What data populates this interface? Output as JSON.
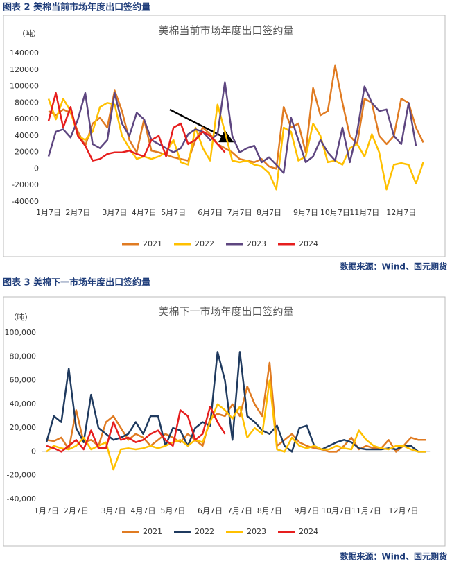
{
  "captions": [
    "图表 2  美棉当前市场年度出口签约量",
    "图表 3  美棉下一市场年度出口签约量"
  ],
  "sources": [
    "数据来源：Wind、国元期货",
    "数据来源：Wind、国元期货"
  ],
  "chart_data": [
    {
      "type": "line",
      "title": "美棉当前市场年度出口签约量",
      "ylabel": "（吨）",
      "categories": [
        "1月7日",
        null,
        null,
        null,
        "2月7日",
        null,
        null,
        null,
        null,
        "3月7日",
        null,
        null,
        null,
        "4月7日",
        null,
        null,
        null,
        "5月7日",
        null,
        null,
        null,
        null,
        "6月7日",
        null,
        null,
        null,
        "7月7日",
        null,
        null,
        null,
        "8月7日",
        null,
        null,
        null,
        null,
        "9月7日",
        null,
        null,
        null,
        "10月7日",
        null,
        null,
        null,
        "11月7日",
        null,
        null,
        null,
        null,
        "12月7日",
        null,
        null,
        null
      ],
      "ylim": [
        -40000,
        140000
      ],
      "yticks": [
        -40000,
        -20000,
        0,
        20000,
        40000,
        60000,
        80000,
        100000,
        120000,
        140000
      ],
      "legend": "bottom",
      "series": [
        {
          "name": "2021",
          "color": "#e07b22",
          "values": [
            70000,
            65000,
            72000,
            68000,
            45000,
            28000,
            55000,
            62000,
            50000,
            95000,
            70000,
            35000,
            20000,
            60000,
            22000,
            20000,
            17000,
            14000,
            12000,
            10000,
            35000,
            50000,
            42000,
            30000,
            25000,
            20000,
            12000,
            10000,
            8000,
            12000,
            3000,
            0,
            75000,
            50000,
            55000,
            20000,
            98000,
            65000,
            70000,
            125000,
            80000,
            40000,
            30000,
            85000,
            80000,
            40000,
            30000,
            40000,
            85000,
            80000,
            50000,
            32000
          ]
        },
        {
          "name": "2022",
          "color": "#ffc000",
          "values": [
            85000,
            60000,
            85000,
            70000,
            40000,
            35000,
            45000,
            75000,
            80000,
            78000,
            40000,
            25000,
            12000,
            15000,
            12000,
            15000,
            20000,
            35000,
            8000,
            5000,
            50000,
            25000,
            10000,
            78000,
            45000,
            10000,
            8000,
            10000,
            5000,
            3000,
            -5000,
            -25000,
            50000,
            45000,
            10000,
            15000,
            55000,
            40000,
            8000,
            10000,
            5000,
            25000,
            30000,
            15000,
            42000,
            20000,
            -25000,
            5000,
            7000,
            5000,
            -18000,
            8000
          ]
        },
        {
          "name": "2023",
          "color": "#5e4680",
          "values": [
            15000,
            45000,
            48000,
            38000,
            60000,
            92000,
            30000,
            25000,
            35000,
            92000,
            55000,
            40000,
            68000,
            60000,
            35000,
            30000,
            25000,
            20000,
            25000,
            42000,
            48000,
            45000,
            35000,
            42000,
            105000,
            40000,
            20000,
            25000,
            28000,
            8000,
            14000,
            5000,
            -5000,
            62000,
            35000,
            8000,
            15000,
            35000,
            20000,
            10000,
            50000,
            8000,
            45000,
            100000,
            80000,
            70000,
            72000,
            40000,
            30000,
            80000,
            28000,
            null
          ]
        },
        {
          "name": "2024",
          "color": "#e61e1e",
          "values": [
            58000,
            92000,
            50000,
            75000,
            40000,
            28000,
            10000,
            12000,
            18000,
            20000,
            20000,
            22000,
            18000,
            15000,
            35000,
            40000,
            15000,
            50000,
            55000,
            30000,
            35000,
            45000,
            40000,
            30000,
            20000,
            null,
            null,
            null,
            null,
            null,
            null,
            null,
            null,
            null,
            null,
            null,
            null,
            null,
            null,
            null,
            null,
            null,
            null,
            null,
            null,
            null,
            null,
            null,
            null,
            null,
            null,
            null
          ]
        }
      ]
    },
    {
      "type": "line",
      "title": "美棉下一市场年度出口签约量",
      "ylabel": "（吨）",
      "categories": [
        "1月7日",
        null,
        null,
        null,
        "2月7日",
        null,
        null,
        null,
        null,
        "3月7日",
        null,
        null,
        null,
        "4月7日",
        null,
        null,
        null,
        "5月7日",
        null,
        null,
        null,
        null,
        "6月7日",
        null,
        null,
        null,
        "7月7日",
        null,
        null,
        null,
        "8月7日",
        null,
        null,
        null,
        null,
        "9月7日",
        null,
        null,
        null,
        "10月7日",
        null,
        null,
        null,
        "11月7日",
        null,
        null,
        null,
        null,
        "12月7日",
        null,
        null,
        null
      ],
      "ylim": [
        -40000,
        100000
      ],
      "yticks": [
        {
          "value": -40000,
          "label": "-40,000"
        },
        {
          "value": -20000,
          "label": "-20,000"
        },
        0,
        {
          "value": 20000,
          "label": "20,000"
        },
        {
          "value": 40000,
          "label": "40,000"
        },
        {
          "value": 60000,
          "label": "60,000"
        },
        {
          "value": 80000,
          "label": "80,000"
        },
        {
          "value": 100000,
          "label": "100,000"
        }
      ],
      "legend": "bottom",
      "series": [
        {
          "name": "2021",
          "color": "#e07b22",
          "values": [
            10000,
            9000,
            12000,
            2000,
            35000,
            8000,
            10000,
            5000,
            25000,
            30000,
            20000,
            10000,
            15000,
            12000,
            5000,
            10000,
            15000,
            12000,
            8000,
            15000,
            10000,
            5000,
            28000,
            32000,
            30000,
            40000,
            30000,
            55000,
            40000,
            30000,
            75000,
            5000,
            10000,
            15000,
            8000,
            5000,
            3000,
            2000,
            0,
            0,
            5000,
            12000,
            2000,
            5000,
            3000,
            3000,
            10000,
            0,
            5000,
            12000,
            10000,
            10000
          ]
        },
        {
          "name": "2022",
          "color": "#1f3a5f",
          "values": [
            8000,
            30000,
            25000,
            70000,
            20000,
            8000,
            48000,
            20000,
            15000,
            10000,
            12000,
            15000,
            25000,
            15000,
            30000,
            30000,
            5000,
            20000,
            18000,
            5000,
            20000,
            25000,
            22000,
            84000,
            60000,
            10000,
            84000,
            30000,
            25000,
            18000,
            15000,
            22000,
            5000,
            0,
            20000,
            22000,
            5000,
            2000,
            5000,
            8000,
            10000,
            8000,
            3000,
            2000,
            2000,
            2000,
            3000,
            2000,
            5000,
            5000,
            0,
            0
          ]
        },
        {
          "name": "2023",
          "color": "#ffc000",
          "values": [
            0,
            5000,
            3000,
            2000,
            5000,
            12000,
            2000,
            5000,
            8000,
            -15000,
            2000,
            3000,
            2000,
            3000,
            5000,
            3000,
            5000,
            8000,
            10000,
            5000,
            10000,
            8000,
            25000,
            40000,
            35000,
            28000,
            38000,
            12000,
            20000,
            15000,
            60000,
            2000,
            0,
            12000,
            5000,
            3000,
            5000,
            2000,
            2000,
            5000,
            3000,
            2000,
            18000,
            10000,
            5000,
            3000,
            2000,
            5000,
            5000,
            2000,
            0,
            0
          ]
        },
        {
          "name": "2024",
          "color": "#e61e1e",
          "values": [
            5000,
            3000,
            0,
            5000,
            10000,
            2000,
            18000,
            3000,
            3000,
            25000,
            10000,
            12000,
            8000,
            10000,
            15000,
            18000,
            10000,
            5000,
            35000,
            30000,
            10000,
            15000,
            38000,
            25000,
            15000,
            null,
            null,
            null,
            null,
            null,
            null,
            null,
            null,
            null,
            null,
            null,
            null,
            null,
            null,
            null,
            null,
            null,
            null,
            null,
            null,
            null,
            null,
            null,
            null,
            null,
            null,
            null
          ]
        }
      ]
    }
  ]
}
